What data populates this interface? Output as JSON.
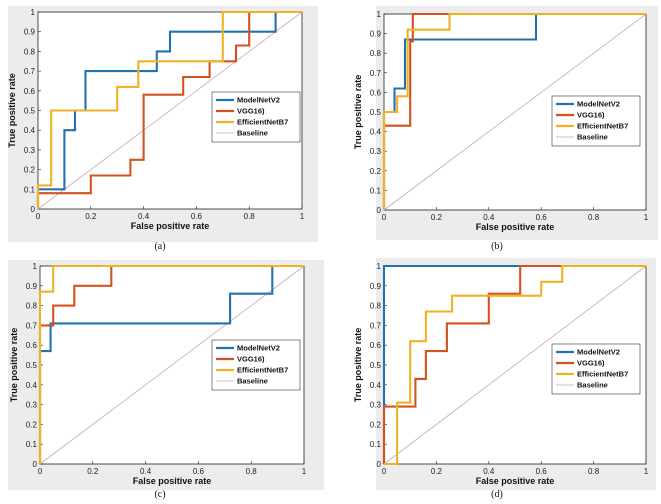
{
  "colors": {
    "ModelNetV2": "#2272b0",
    "VGG16": "#d4521f",
    "EfficientNetB7": "#efb225",
    "Baseline": "#c9a8b4",
    "background": "#ececec",
    "plot_area": "#ffffff"
  },
  "chart_data": [
    {
      "type": "line",
      "caption": "(a)",
      "xlabel": "False positive rate",
      "ylabel": "True positive rate",
      "xlim": [
        0,
        1
      ],
      "ylim": [
        0,
        1
      ],
      "xticks": [
        "0",
        "0.2",
        "0.4",
        "0.6",
        "0.8",
        "1"
      ],
      "yticks": [
        "0",
        "0.1",
        "0.2",
        "0.3",
        "0.4",
        "0.5",
        "0.6",
        "0.7",
        "0.8",
        "0.9",
        "1"
      ],
      "legend_position": "middle-right",
      "series": [
        {
          "name": "ModelNetV2",
          "color_key": "ModelNetV2",
          "points": [
            [
              0,
              0
            ],
            [
              0,
              0.1
            ],
            [
              0.1,
              0.1
            ],
            [
              0.1,
              0.4
            ],
            [
              0.14,
              0.4
            ],
            [
              0.14,
              0.5
            ],
            [
              0.18,
              0.5
            ],
            [
              0.18,
              0.7
            ],
            [
              0.45,
              0.7
            ],
            [
              0.45,
              0.8
            ],
            [
              0.5,
              0.8
            ],
            [
              0.5,
              0.9
            ],
            [
              0.9,
              0.9
            ],
            [
              0.9,
              1
            ],
            [
              1,
              1
            ]
          ]
        },
        {
          "name": "VGG16)",
          "color_key": "VGG16",
          "points": [
            [
              0,
              0
            ],
            [
              0,
              0.08
            ],
            [
              0.2,
              0.08
            ],
            [
              0.2,
              0.17
            ],
            [
              0.35,
              0.17
            ],
            [
              0.35,
              0.25
            ],
            [
              0.4,
              0.25
            ],
            [
              0.4,
              0.58
            ],
            [
              0.55,
              0.58
            ],
            [
              0.55,
              0.67
            ],
            [
              0.65,
              0.67
            ],
            [
              0.65,
              0.75
            ],
            [
              0.75,
              0.75
            ],
            [
              0.75,
              0.83
            ],
            [
              0.8,
              0.83
            ],
            [
              0.8,
              1
            ],
            [
              1,
              1
            ]
          ]
        },
        {
          "name": "EfficientNetB7",
          "color_key": "EfficientNetB7",
          "points": [
            [
              0,
              0
            ],
            [
              0,
              0.12
            ],
            [
              0.05,
              0.12
            ],
            [
              0.05,
              0.5
            ],
            [
              0.3,
              0.5
            ],
            [
              0.3,
              0.62
            ],
            [
              0.38,
              0.62
            ],
            [
              0.38,
              0.75
            ],
            [
              0.7,
              0.75
            ],
            [
              0.7,
              1
            ],
            [
              1,
              1
            ]
          ]
        },
        {
          "name": "Baseline",
          "color_key": "Baseline",
          "points": [
            [
              0,
              0
            ],
            [
              1,
              1
            ]
          ]
        }
      ]
    },
    {
      "type": "line",
      "caption": "(b)",
      "xlabel": "False positive rate",
      "ylabel": "True positive rate",
      "xlim": [
        0,
        1
      ],
      "ylim": [
        0,
        1
      ],
      "xticks": [
        "0",
        "0.2",
        "0.4",
        "0.6",
        "0.8",
        "1"
      ],
      "yticks": [
        "0",
        "0.1",
        "0.2",
        "0.3",
        "0.4",
        "0.5",
        "0.6",
        "0.7",
        "0.8",
        "0.9",
        "1"
      ],
      "legend_position": "middle-right",
      "series": [
        {
          "name": "ModelNetV2",
          "color_key": "ModelNetV2",
          "points": [
            [
              0,
              0
            ],
            [
              0,
              0.5
            ],
            [
              0.04,
              0.5
            ],
            [
              0.04,
              0.62
            ],
            [
              0.08,
              0.62
            ],
            [
              0.08,
              0.87
            ],
            [
              0.58,
              0.87
            ],
            [
              0.58,
              1
            ],
            [
              1,
              1
            ]
          ]
        },
        {
          "name": "VGG16)",
          "color_key": "VGG16",
          "points": [
            [
              0,
              0
            ],
            [
              0,
              0.43
            ],
            [
              0.1,
              0.43
            ],
            [
              0.1,
              0.86
            ],
            [
              0.11,
              0.86
            ],
            [
              0.11,
              1
            ],
            [
              1,
              1
            ]
          ]
        },
        {
          "name": "EfficientNetB7",
          "color_key": "EfficientNetB7",
          "points": [
            [
              0,
              0
            ],
            [
              0,
              0.5
            ],
            [
              0.05,
              0.5
            ],
            [
              0.05,
              0.58
            ],
            [
              0.09,
              0.58
            ],
            [
              0.09,
              0.92
            ],
            [
              0.25,
              0.92
            ],
            [
              0.25,
              1
            ],
            [
              1,
              1
            ]
          ]
        },
        {
          "name": "Baseline",
          "color_key": "Baseline",
          "points": [
            [
              0,
              0
            ],
            [
              1,
              1
            ]
          ]
        }
      ]
    },
    {
      "type": "line",
      "caption": "(c)",
      "xlabel": "False positive rate",
      "ylabel": "True positive rate",
      "xlim": [
        0,
        1
      ],
      "ylim": [
        0,
        1
      ],
      "xticks": [
        "0",
        "0.2",
        "0.4",
        "0.6",
        "0.8",
        "1"
      ],
      "yticks": [
        "0",
        "0.1",
        "0.2",
        "0.3",
        "0.4",
        "0.5",
        "0.6",
        "0.7",
        "0.8",
        "0.9",
        "1"
      ],
      "legend_position": "middle-right",
      "series": [
        {
          "name": "ModelNetV2",
          "color_key": "ModelNetV2",
          "points": [
            [
              0,
              0
            ],
            [
              0,
              0.57
            ],
            [
              0.04,
              0.57
            ],
            [
              0.04,
              0.71
            ],
            [
              0.72,
              0.71
            ],
            [
              0.72,
              0.86
            ],
            [
              0.88,
              0.86
            ],
            [
              0.88,
              1
            ],
            [
              1,
              1
            ]
          ]
        },
        {
          "name": "VGG16)",
          "color_key": "VGG16",
          "points": [
            [
              0,
              0
            ],
            [
              0,
              0.7
            ],
            [
              0.05,
              0.7
            ],
            [
              0.05,
              0.8
            ],
            [
              0.13,
              0.8
            ],
            [
              0.13,
              0.9
            ],
            [
              0.27,
              0.9
            ],
            [
              0.27,
              1
            ],
            [
              1,
              1
            ]
          ]
        },
        {
          "name": "EfficientNetB7",
          "color_key": "EfficientNetB7",
          "points": [
            [
              0,
              0
            ],
            [
              0,
              0.87
            ],
            [
              0.05,
              0.87
            ],
            [
              0.05,
              1
            ],
            [
              1,
              1
            ]
          ]
        },
        {
          "name": "Baseline",
          "color_key": "Baseline",
          "points": [
            [
              0,
              0
            ],
            [
              1,
              1
            ]
          ]
        }
      ]
    },
    {
      "type": "line",
      "caption": "(d)",
      "xlabel": "False positive rate",
      "ylabel": "True positive rate",
      "xlim": [
        0,
        1
      ],
      "ylim": [
        0,
        1
      ],
      "xticks": [
        "0",
        "0.2",
        "0.4",
        "0.6",
        "0.8",
        "1"
      ],
      "yticks": [
        "0",
        "0.1",
        "0.2",
        "0.3",
        "0.4",
        "0.5",
        "0.6",
        "0.7",
        "0.8",
        "0.9",
        "1"
      ],
      "legend_position": "middle-right",
      "series": [
        {
          "name": "ModelNetV2",
          "color_key": "ModelNetV2",
          "points": [
            [
              0,
              0
            ],
            [
              0,
              1
            ],
            [
              1,
              1
            ]
          ]
        },
        {
          "name": "VGG16)",
          "color_key": "VGG16",
          "points": [
            [
              0,
              0
            ],
            [
              0,
              0.29
            ],
            [
              0.12,
              0.29
            ],
            [
              0.12,
              0.43
            ],
            [
              0.16,
              0.43
            ],
            [
              0.16,
              0.57
            ],
            [
              0.24,
              0.57
            ],
            [
              0.24,
              0.71
            ],
            [
              0.4,
              0.71
            ],
            [
              0.4,
              0.86
            ],
            [
              0.52,
              0.86
            ],
            [
              0.52,
              1
            ],
            [
              1,
              1
            ]
          ]
        },
        {
          "name": "EfficientNetB7",
          "color_key": "EfficientNetB7",
          "points": [
            [
              0,
              0
            ],
            [
              0.05,
              0
            ],
            [
              0.05,
              0.31
            ],
            [
              0.1,
              0.31
            ],
            [
              0.1,
              0.62
            ],
            [
              0.16,
              0.62
            ],
            [
              0.16,
              0.77
            ],
            [
              0.26,
              0.77
            ],
            [
              0.26,
              0.85
            ],
            [
              0.6,
              0.85
            ],
            [
              0.6,
              0.92
            ],
            [
              0.68,
              0.92
            ],
            [
              0.68,
              1
            ],
            [
              1,
              1
            ]
          ]
        },
        {
          "name": "Baseline",
          "color_key": "Baseline",
          "points": [
            [
              0,
              0
            ],
            [
              1,
              1
            ]
          ]
        }
      ]
    }
  ]
}
